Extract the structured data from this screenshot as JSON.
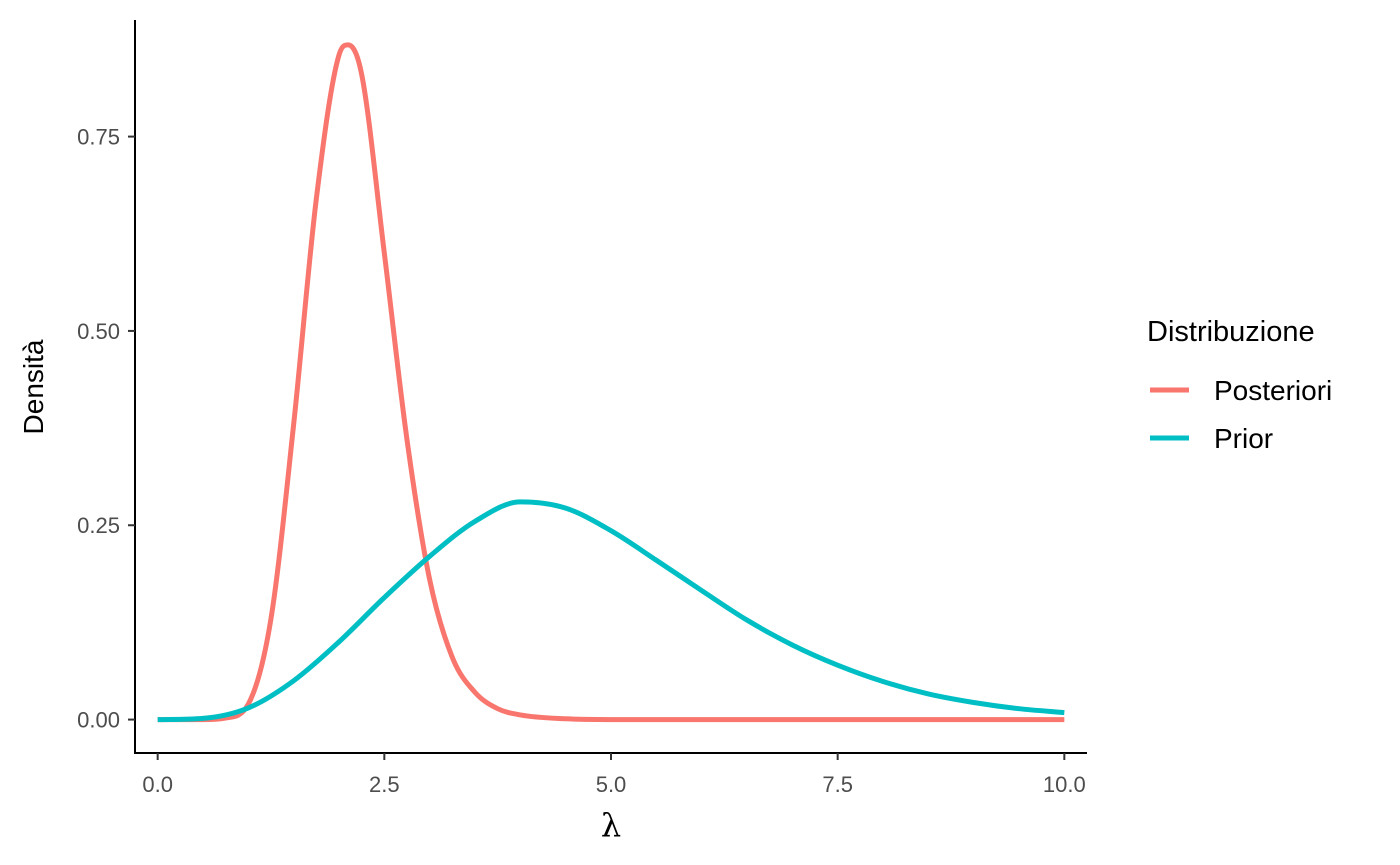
{
  "chart_data": {
    "type": "line",
    "title": "",
    "xlabel": "λ",
    "ylabel": "Densità",
    "xlim": [
      -0.25,
      10.25
    ],
    "ylim": [
      -0.043,
      0.9
    ],
    "xticks": [
      0.0,
      2.5,
      5.0,
      7.5,
      10.0
    ],
    "xtick_labels": [
      "0.0",
      "2.5",
      "5.0",
      "7.5",
      "10.0"
    ],
    "yticks": [
      0.0,
      0.25,
      0.5,
      0.75
    ],
    "ytick_labels": [
      "0.00",
      "0.25",
      "0.50",
      "0.75"
    ],
    "grid": false,
    "legend": {
      "title": "Distribuzione",
      "position": "right"
    },
    "series": [
      {
        "name": "Posteriori",
        "color": "#F8766D",
        "x": [
          0,
          0.5,
          0.75,
          1.0,
          1.25,
          1.5,
          1.75,
          2.0,
          2.1,
          2.25,
          2.5,
          2.75,
          3.0,
          3.25,
          3.5,
          3.75,
          4.0,
          4.5,
          5.0,
          6.0,
          7.0,
          8.0,
          9.0,
          10.0
        ],
        "y": [
          0.0,
          0.0,
          0.002,
          0.02,
          0.13,
          0.38,
          0.67,
          0.855,
          0.868,
          0.83,
          0.6,
          0.36,
          0.18,
          0.08,
          0.035,
          0.014,
          0.006,
          0.001,
          0.0,
          0.0,
          0.0,
          0.0,
          0.0,
          0.0
        ]
      },
      {
        "name": "Prior",
        "color": "#00BFC4",
        "x": [
          0,
          0.5,
          1.0,
          1.5,
          2.0,
          2.5,
          3.0,
          3.5,
          4.0,
          4.5,
          5.0,
          5.5,
          6.0,
          6.5,
          7.0,
          7.5,
          8.0,
          8.5,
          9.0,
          9.5,
          10.0
        ],
        "y": [
          0.0,
          0.0016,
          0.015,
          0.05,
          0.1,
          0.157,
          0.21,
          0.255,
          0.28,
          0.272,
          0.243,
          0.205,
          0.166,
          0.128,
          0.096,
          0.07,
          0.049,
          0.033,
          0.022,
          0.014,
          0.009
        ]
      }
    ]
  }
}
